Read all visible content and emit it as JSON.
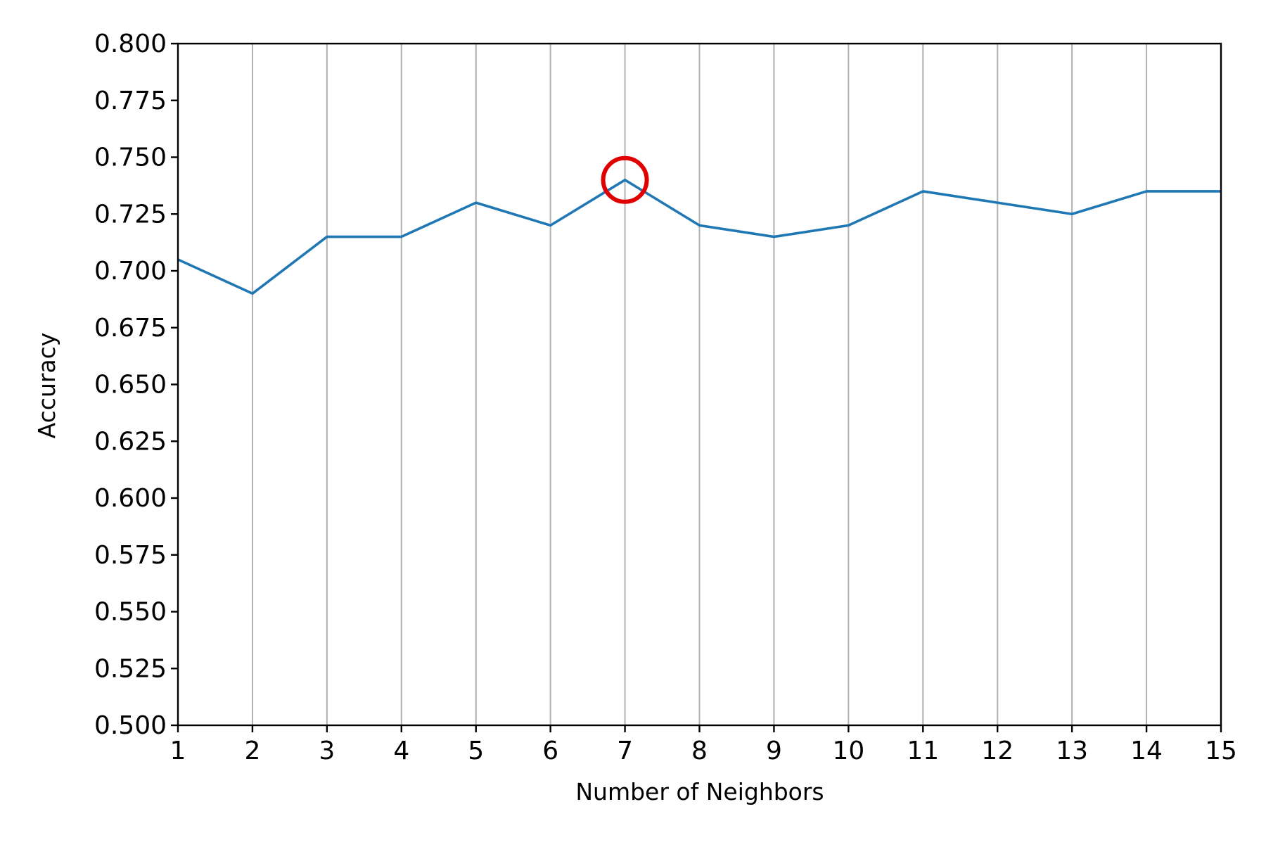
{
  "chart_data": {
    "type": "line",
    "title": "",
    "xlabel": "Number of Neighbors",
    "ylabel": "Accuracy",
    "xlim": [
      1,
      15
    ],
    "ylim": [
      0.5,
      0.8
    ],
    "x_ticks": [
      "1",
      "2",
      "3",
      "4",
      "5",
      "6",
      "7",
      "8",
      "9",
      "10",
      "11",
      "12",
      "13",
      "14",
      "15"
    ],
    "y_ticks": [
      "0.500",
      "0.525",
      "0.550",
      "0.575",
      "0.600",
      "0.625",
      "0.650",
      "0.675",
      "0.700",
      "0.725",
      "0.750",
      "0.775",
      "0.800"
    ],
    "grid": "vertical",
    "series": [
      {
        "x": [
          1,
          2,
          3,
          4,
          5,
          6,
          7,
          8,
          9,
          10,
          11,
          12,
          13,
          14,
          15
        ],
        "y": [
          0.705,
          0.69,
          0.715,
          0.715,
          0.73,
          0.72,
          0.74,
          0.72,
          0.715,
          0.72,
          0.735,
          0.73,
          0.725,
          0.735,
          0.735
        ],
        "color": "#1f77b4"
      }
    ],
    "highlight": {
      "x": 7,
      "y": 0.74,
      "shape": "circle",
      "color": "#e00000"
    },
    "colors": {
      "grid": "#b0b0b0",
      "axis": "#000000"
    }
  }
}
